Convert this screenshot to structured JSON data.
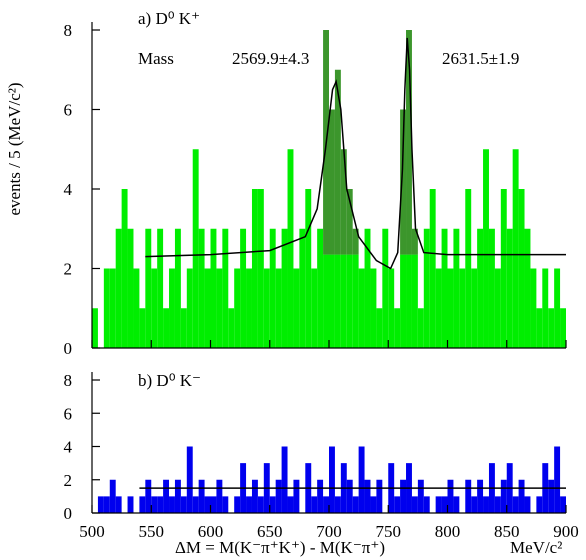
{
  "chart_data": [
    {
      "type": "histogram",
      "label": "a) D⁰ K⁺",
      "ylabel": "events / 5 (MeV/c²)",
      "annotations": [
        "Mass",
        "2569.9±4.3",
        "2631.5±1.9"
      ],
      "bins": [
        500,
        505,
        510,
        515,
        520,
        525,
        530,
        535,
        540,
        545,
        550,
        555,
        560,
        565,
        570,
        575,
        580,
        585,
        590,
        595,
        600,
        605,
        610,
        615,
        620,
        625,
        630,
        635,
        640,
        645,
        650,
        655,
        660,
        665,
        670,
        675,
        680,
        685,
        690,
        695,
        700,
        705,
        710,
        715,
        720,
        725,
        730,
        735,
        740,
        745,
        750,
        755,
        760,
        765,
        770,
        775,
        780,
        785,
        790,
        795,
        800,
        805,
        810,
        815,
        820,
        825,
        830,
        835,
        840,
        845,
        850,
        855,
        860,
        865,
        870,
        875,
        880,
        885,
        890,
        895,
        900
      ],
      "values": [
        1,
        0,
        2,
        2,
        3,
        4,
        3,
        2,
        1,
        3,
        2,
        3,
        1,
        2,
        3,
        1,
        2,
        5,
        3,
        2,
        3,
        2,
        3,
        1,
        2,
        3,
        2,
        4,
        4,
        2,
        3,
        2,
        3,
        5,
        2,
        3,
        4,
        2,
        3,
        8,
        6,
        7,
        5,
        4,
        3,
        2,
        3,
        2,
        1,
        3,
        2,
        1,
        6,
        8,
        3,
        1,
        3,
        4,
        2,
        3,
        2,
        3,
        2,
        4,
        2,
        3,
        5,
        3,
        2,
        4,
        3,
        5,
        4,
        3,
        2,
        1,
        2,
        1,
        2,
        1
      ],
      "color": "#00ee00",
      "highlight_color": "#3c962c",
      "highlight_ranges": [
        [
          695,
          725
        ],
        [
          760,
          775
        ]
      ],
      "highlight_floor": 2.35,
      "fit": {
        "x": [
          545,
          600,
          650,
          680,
          690,
          697,
          703,
          706,
          710,
          715,
          725,
          740,
          752,
          758,
          762,
          764,
          766,
          768,
          770,
          773,
          780,
          800,
          850,
          900
        ],
        "y": [
          2.3,
          2.35,
          2.45,
          2.8,
          3.5,
          5,
          6.5,
          6.7,
          6,
          4,
          2.8,
          2.2,
          2.0,
          2.4,
          4.5,
          6.5,
          7.8,
          7,
          5,
          3,
          2.4,
          2.35,
          2.35,
          2.35
        ]
      },
      "xlim": [
        500,
        900
      ],
      "xticks": [
        500,
        550,
        600,
        650,
        700,
        750,
        800,
        850,
        900
      ],
      "ylim": [
        0,
        8
      ],
      "yticks": [
        0,
        2,
        4,
        6,
        8
      ]
    },
    {
      "type": "histogram",
      "label": "b) D⁰ K⁻",
      "xlabel": "ΔM = M(K⁻π⁺K⁺) - M(K⁻π⁺)",
      "xunit": "MeV/c²",
      "bins": [
        500,
        505,
        510,
        515,
        520,
        525,
        530,
        535,
        540,
        545,
        550,
        555,
        560,
        565,
        570,
        575,
        580,
        585,
        590,
        595,
        600,
        605,
        610,
        615,
        620,
        625,
        630,
        635,
        640,
        645,
        650,
        655,
        660,
        665,
        670,
        675,
        680,
        685,
        690,
        695,
        700,
        705,
        710,
        715,
        720,
        725,
        730,
        735,
        740,
        745,
        750,
        755,
        760,
        765,
        770,
        775,
        780,
        785,
        790,
        795,
        800,
        805,
        810,
        815,
        820,
        825,
        830,
        835,
        840,
        845,
        850,
        855,
        860,
        865,
        870,
        875,
        880,
        885,
        890,
        895,
        900
      ],
      "values": [
        0,
        1,
        1,
        2,
        1,
        0,
        1,
        0,
        1,
        2,
        1,
        1,
        2,
        1,
        2,
        1,
        4,
        1,
        2,
        1,
        1,
        2,
        1,
        0,
        1,
        3,
        1,
        2,
        1,
        3,
        1,
        2,
        4,
        1,
        2,
        0,
        3,
        1,
        2,
        1,
        4,
        1,
        3,
        2,
        1,
        4,
        2,
        1,
        2,
        0,
        3,
        1,
        2,
        3,
        1,
        2,
        1,
        0,
        1,
        1,
        2,
        1,
        0,
        2,
        1,
        2,
        1,
        3,
        1,
        2,
        3,
        1,
        2,
        1,
        0,
        1,
        3,
        2,
        4,
        1
      ],
      "color": "#0000ee",
      "fit": {
        "x": [
          540,
          900
        ],
        "y": [
          1.5,
          1.5
        ]
      },
      "xlim": [
        500,
        900
      ],
      "xticks": [
        500,
        550,
        600,
        650,
        700,
        750,
        800,
        850,
        900
      ],
      "ylim": [
        0,
        8
      ],
      "yticks": [
        0,
        2,
        4,
        6,
        8
      ]
    }
  ]
}
